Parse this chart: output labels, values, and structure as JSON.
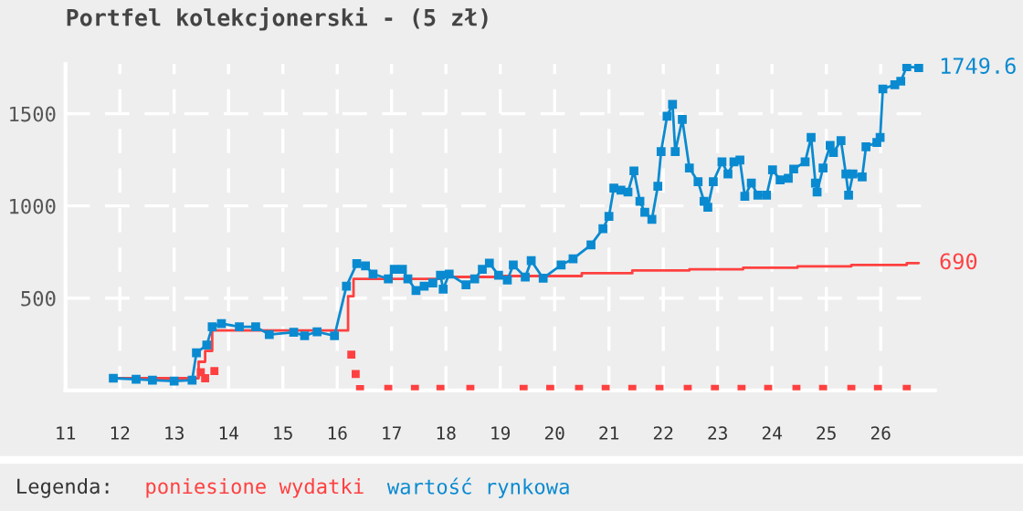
{
  "chart_data": {
    "type": "line",
    "title": "Portfel kolekcjonerski - (5 zł)",
    "legend_title": "Legenda:",
    "legend": "bottom",
    "grid": true,
    "xlim": [
      11,
      27
    ],
    "xticks": [
      11,
      12,
      13,
      14,
      15,
      16,
      17,
      18,
      19,
      20,
      21,
      22,
      23,
      24,
      25,
      26
    ],
    "ylim": [
      0,
      1770
    ],
    "yticks": [
      500,
      1000,
      1500
    ],
    "series": [
      {
        "name": "poniesione wydatki",
        "type": "step",
        "color": "#ff4040",
        "marker": "none",
        "x": [
          11.88,
          13.45,
          13.57,
          13.7,
          16.2,
          16.3,
          17.9,
          19.0,
          20.5,
          21.43,
          22.48,
          23.47,
          24.47,
          25.46,
          26.48,
          26.7
        ],
        "values": [
          66,
          155,
          214,
          325,
          510,
          605,
          615,
          620,
          635,
          650,
          657,
          665,
          672,
          680,
          690,
          690
        ],
        "value_labels": [
          null,
          null,
          null,
          null,
          null,
          null,
          null,
          null,
          null,
          null,
          null,
          null,
          null,
          null,
          null,
          "690"
        ]
      },
      {
        "name": "wartość rynkowa",
        "type": "line",
        "color": "#0a8ad0",
        "marker": "square",
        "x": [
          11.88,
          12.3,
          12.6,
          13.0,
          13.33,
          13.41,
          13.6,
          13.7,
          13.87,
          14.2,
          14.5,
          14.75,
          15.2,
          15.4,
          15.63,
          15.95,
          16.17,
          16.36,
          16.52,
          16.66,
          16.94,
          17.05,
          17.2,
          17.3,
          17.45,
          17.6,
          17.76,
          17.9,
          17.95,
          18.06,
          18.37,
          18.53,
          18.67,
          18.8,
          18.97,
          19.13,
          19.24,
          19.46,
          19.57,
          19.79,
          20.12,
          20.34,
          20.67,
          20.89,
          21.0,
          21.09,
          21.22,
          21.35,
          21.46,
          21.57,
          21.66,
          21.79,
          21.9,
          21.96,
          22.07,
          22.17,
          22.22,
          22.35,
          22.48,
          22.64,
          22.75,
          22.82,
          22.92,
          23.08,
          23.19,
          23.3,
          23.41,
          23.5,
          23.62,
          23.74,
          23.9,
          24.01,
          24.15,
          24.3,
          24.4,
          24.61,
          24.72,
          24.8,
          24.83,
          24.94,
          25.07,
          25.13,
          25.27,
          25.36,
          25.41,
          25.49,
          25.66,
          25.73,
          25.93,
          25.99,
          26.04,
          26.26,
          26.37,
          26.48,
          26.7
        ],
        "values": [
          66,
          60,
          55,
          50,
          55,
          204,
          246,
          345,
          362,
          345,
          345,
          303,
          315,
          296,
          318,
          296,
          565,
          687,
          675,
          631,
          605,
          657,
          657,
          605,
          542,
          565,
          582,
          624,
          549,
          631,
          572,
          605,
          657,
          690,
          624,
          598,
          680,
          614,
          703,
          608,
          680,
          713,
          789,
          877,
          943,
          1097,
          1085,
          1075,
          1190,
          1025,
          966,
          927,
          1107,
          1295,
          1486,
          1551,
          1295,
          1469,
          1206,
          1131,
          1025,
          993,
          1131,
          1239,
          1173,
          1239,
          1249,
          1052,
          1124,
          1058,
          1058,
          1196,
          1141,
          1150,
          1200,
          1239,
          1371,
          1124,
          1075,
          1206,
          1328,
          1289,
          1354,
          1173,
          1058,
          1173,
          1157,
          1321,
          1344,
          1371,
          1634,
          1657,
          1676,
          1755,
          1749.6
        ],
        "value_labels": [
          null,
          null,
          null,
          null,
          null,
          null,
          null,
          null,
          null,
          null,
          null,
          null,
          null,
          null,
          null,
          null,
          null,
          null,
          null,
          null,
          null,
          null,
          null,
          null,
          null,
          null,
          null,
          null,
          null,
          null,
          null,
          null,
          null,
          null,
          null,
          null,
          null,
          null,
          null,
          null,
          null,
          null,
          null,
          null,
          null,
          null,
          null,
          null,
          null,
          null,
          null,
          null,
          null,
          null,
          null,
          null,
          null,
          null,
          null,
          null,
          null,
          null,
          null,
          null,
          null,
          null,
          null,
          null,
          null,
          null,
          null,
          null,
          null,
          null,
          null,
          null,
          null,
          null,
          null,
          null,
          null,
          null,
          null,
          null,
          null,
          null,
          null,
          null,
          null,
          null,
          null,
          null,
          null,
          null,
          "1749.6"
        ]
      },
      {
        "type": "scatter",
        "color": "#ff4040",
        "marker": "square",
        "x": [
          13.49,
          13.57,
          13.74,
          16.26,
          16.34,
          16.42,
          16.94,
          17.43,
          17.9,
          18.45,
          19.43,
          19.92,
          20.45,
          20.94,
          21.43,
          21.93,
          22.45,
          22.95,
          23.44,
          23.93,
          24.45,
          24.94,
          25.46,
          25.95,
          26.48
        ],
        "values": [
          99,
          66,
          105,
          194,
          89,
          7,
          8,
          8,
          8,
          8,
          8,
          8,
          8,
          8,
          8,
          8,
          8,
          8,
          8,
          8,
          8,
          8,
          8,
          8,
          8
        ]
      }
    ]
  }
}
